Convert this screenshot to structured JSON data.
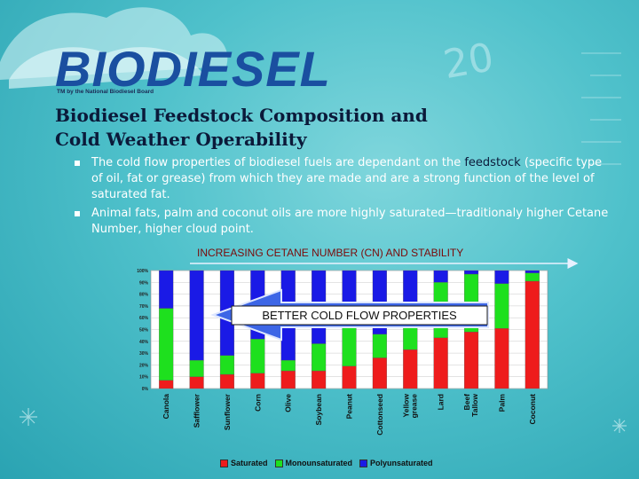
{
  "logo": {
    "bio": "BIO",
    "diesel": "DIESEL",
    "tagline": "TM by the National Biodiesel Board"
  },
  "slide": {
    "title_line1": "Biodiesel Feedstock Composition and",
    "title_line2": "Cold Weather Operability",
    "bullet1_pre": "The cold flow properties of biodiesel fuels are dependant on the ",
    "bullet1_highlight": "feedstock",
    "bullet1_post": " (specific type of oil, fat or grease) from which they are made and are a strong function of the level of saturated fat.",
    "bullet2": "Animal fats, palm and coconut oils are more highly saturated—traditionaly higher Cetane Number, higher cloud point."
  },
  "annotations": {
    "cetane": "INCREASING CETANE NUMBER (CN) AND STABILITY",
    "cold_flow": "BETTER COLD FLOW PROPERTIES"
  },
  "colors": {
    "saturated": "#ee1c1c",
    "monounsaturated": "#1ee01e",
    "polyunsaturated": "#1a1ae6",
    "arrow_fill": "#3d66e6",
    "arrow_stroke": "#dde6ff"
  },
  "chart_data": {
    "type": "bar",
    "stacked": true,
    "categories": [
      "Canola",
      "Safflower",
      "Sunflower",
      "Corn",
      "Olive",
      "Soybean",
      "Peanut",
      "Cottonseed",
      "Yellow grease",
      "Lard",
      "Beef Tallow",
      "Palm",
      "Coconut"
    ],
    "series": [
      {
        "name": "Saturated",
        "values": [
          7,
          10,
          12,
          13,
          15,
          15,
          19,
          26,
          33,
          43,
          48,
          51,
          91
        ]
      },
      {
        "name": "Monounsaturated",
        "values": [
          61,
          14,
          16,
          29,
          9,
          23,
          48,
          20,
          32,
          47,
          49,
          38,
          7
        ]
      },
      {
        "name": "Polyunsaturated",
        "values": [
          32,
          76,
          72,
          58,
          76,
          62,
          33,
          54,
          35,
          10,
          3,
          11,
          2
        ]
      }
    ],
    "yticks": [
      "0%",
      "10%",
      "20%",
      "30%",
      "40%",
      "50%",
      "60%",
      "70%",
      "80%",
      "90%",
      "100%"
    ],
    "ylim": [
      0,
      100
    ],
    "legend_position": "bottom"
  }
}
